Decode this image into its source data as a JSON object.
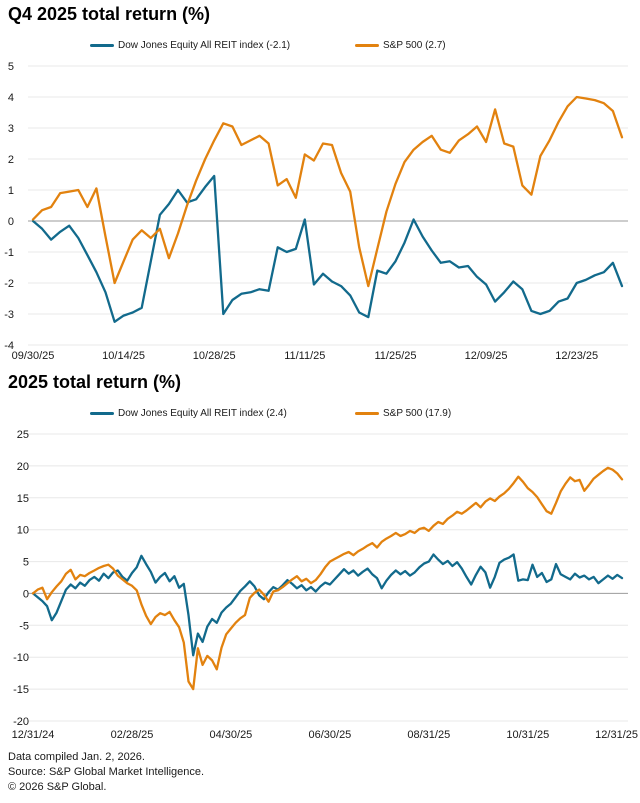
{
  "footer": {
    "line1": "Data compiled Jan. 2, 2026.",
    "line2": "Source: S&P Global Market Intelligence.",
    "line3": "© 2026 S&P Global."
  },
  "colors": {
    "reit": "#126a8c",
    "sp500": "#e2820f",
    "grid": "#e8e8e8",
    "zero_line": "#9b9b9b",
    "text": "#1a1a1a"
  },
  "chart_data": [
    {
      "type": "line",
      "title": "Q4 2025 total return (%)",
      "xlabel": "",
      "ylabel": "",
      "ylim": [
        -4,
        5
      ],
      "ytick_step": 1,
      "grid": true,
      "legend_position": "top",
      "x_tick_labels": [
        "09/30/25",
        "10/14/25",
        "10/28/25",
        "11/11/25",
        "11/25/25",
        "12/09/25",
        "12/23/25"
      ],
      "x_tick_indices": [
        0,
        10,
        20,
        30,
        40,
        50,
        60
      ],
      "series": [
        {
          "key": "reit",
          "name": "Dow Jones Equity All REIT index (-2.1)",
          "color": "#126a8c",
          "final_value": -2.1,
          "values": [
            0.0,
            -0.25,
            -0.6,
            -0.35,
            -0.15,
            -0.55,
            -1.1,
            -1.65,
            -2.3,
            -3.25,
            -3.05,
            -2.95,
            -2.8,
            -1.3,
            0.2,
            0.55,
            1.0,
            0.6,
            0.7,
            1.1,
            1.45,
            -3.0,
            -2.55,
            -2.35,
            -2.3,
            -2.2,
            -2.25,
            -0.85,
            -1.0,
            -0.9,
            0.05,
            -2.05,
            -1.7,
            -1.95,
            -2.1,
            -2.4,
            -2.95,
            -3.1,
            -1.6,
            -1.7,
            -1.3,
            -0.7,
            0.05,
            -0.5,
            -0.95,
            -1.35,
            -1.3,
            -1.5,
            -1.45,
            -1.8,
            -2.05,
            -2.6,
            -2.3,
            -1.95,
            -2.2,
            -2.9,
            -3.0,
            -2.9,
            -2.6,
            -2.5,
            -2.0,
            -1.9,
            -1.75,
            -1.65,
            -1.35,
            -2.1
          ]
        },
        {
          "key": "sp500",
          "name": "S&P 500 (2.7)",
          "color": "#e2820f",
          "final_value": 2.7,
          "values": [
            0.05,
            0.35,
            0.45,
            0.9,
            0.95,
            1.0,
            0.45,
            1.05,
            -0.5,
            -2.0,
            -1.3,
            -0.6,
            -0.3,
            -0.55,
            -0.25,
            -1.2,
            -0.4,
            0.5,
            1.3,
            2.0,
            2.6,
            3.15,
            3.05,
            2.45,
            2.6,
            2.75,
            2.5,
            1.15,
            1.35,
            0.75,
            2.15,
            1.95,
            2.5,
            2.45,
            1.55,
            0.95,
            -0.85,
            -2.1,
            -0.9,
            0.3,
            1.2,
            1.9,
            2.3,
            2.55,
            2.75,
            2.3,
            2.2,
            2.6,
            2.8,
            3.05,
            2.55,
            3.6,
            2.5,
            2.4,
            1.15,
            0.85,
            2.1,
            2.6,
            3.2,
            3.7,
            4.0,
            3.95,
            3.9,
            3.8,
            3.55,
            2.7
          ]
        }
      ]
    },
    {
      "type": "line",
      "title": "2025 total return (%)",
      "xlabel": "",
      "ylabel": "",
      "ylim": [
        -20,
        25
      ],
      "ytick_step": 5,
      "grid": true,
      "legend_position": "top",
      "x_tick_labels": [
        "12/31/24",
        "02/28/25",
        "04/30/25",
        "06/30/25",
        "08/31/25",
        "10/31/25",
        "12/31/25"
      ],
      "x_tick_indices": [
        0,
        21,
        42,
        63,
        84,
        105,
        125
      ],
      "series": [
        {
          "key": "reit",
          "name": "Dow Jones Equity All REIT index (2.4)",
          "color": "#126a8c",
          "final_value": 2.4,
          "values": [
            0,
            -0.6,
            -1.2,
            -2.0,
            -4.2,
            -3.0,
            -1.2,
            0.6,
            1.4,
            0.8,
            1.7,
            1.2,
            2.1,
            2.6,
            2.0,
            3.1,
            2.4,
            3.3,
            3.6,
            2.6,
            2.0,
            3.2,
            4.1,
            5.9,
            4.6,
            3.4,
            1.7,
            2.6,
            3.2,
            1.9,
            2.7,
            0.9,
            1.5,
            -3.4,
            -9.7,
            -6.3,
            -7.6,
            -5.2,
            -4.0,
            -4.6,
            -3.0,
            -2.2,
            -1.6,
            -0.6,
            0.4,
            1.1,
            1.9,
            1.1,
            -0.3,
            -0.9,
            0.2,
            1.0,
            0.6,
            1.3,
            2.1,
            1.5,
            0.8,
            1.3,
            0.5,
            1.0,
            0.3,
            1.1,
            1.7,
            1.4,
            2.2,
            3.0,
            3.8,
            3.1,
            3.6,
            2.8,
            3.4,
            3.9,
            3.0,
            2.4,
            0.8,
            2.0,
            2.9,
            3.6,
            3.0,
            3.5,
            2.8,
            3.3,
            4.1,
            4.7,
            5.0,
            6.1,
            5.3,
            4.6,
            5.1,
            4.3,
            4.9,
            3.9,
            2.6,
            1.4,
            2.9,
            4.2,
            3.3,
            0.9,
            2.6,
            4.8,
            5.3,
            5.6,
            6.1,
            2.0,
            2.2,
            2.1,
            4.5,
            2.6,
            3.2,
            1.8,
            2.2,
            4.6,
            3.0,
            2.6,
            2.2,
            3.1,
            2.5,
            2.8,
            2.2,
            2.6,
            1.6,
            2.2,
            2.8,
            2.3,
            2.9,
            2.4
          ]
        },
        {
          "key": "sp500",
          "name": "S&P 500 (17.9)",
          "color": "#e2820f",
          "final_value": 17.9,
          "values": [
            0,
            0.6,
            0.9,
            -0.9,
            0.2,
            1.1,
            1.9,
            3.1,
            3.7,
            2.2,
            2.9,
            2.7,
            3.2,
            3.6,
            4.0,
            4.3,
            4.5,
            3.9,
            2.8,
            2.2,
            1.6,
            1.2,
            0.5,
            -1.7,
            -3.5,
            -4.8,
            -3.7,
            -3.1,
            -3.4,
            -2.9,
            -4.2,
            -5.3,
            -7.7,
            -13.8,
            -15.0,
            -8.6,
            -11.2,
            -9.8,
            -10.5,
            -11.9,
            -8.5,
            -6.4,
            -5.5,
            -4.6,
            -3.9,
            -3.4,
            -0.7,
            0.1,
            0.6,
            -0.2,
            -1.3,
            0.3,
            0.5,
            1.0,
            1.6,
            2.2,
            2.7,
            1.9,
            2.3,
            1.6,
            2.1,
            3.0,
            4.1,
            5.0,
            5.4,
            5.8,
            6.2,
            6.5,
            6.0,
            6.6,
            7.0,
            7.5,
            7.9,
            7.2,
            8.1,
            8.6,
            9.0,
            9.5,
            9.0,
            9.3,
            9.8,
            9.5,
            10.1,
            10.3,
            9.8,
            10.6,
            11.2,
            10.9,
            11.7,
            12.2,
            12.8,
            12.5,
            13.0,
            13.6,
            14.2,
            13.5,
            14.4,
            14.9,
            14.5,
            15.2,
            15.7,
            16.4,
            17.3,
            18.3,
            17.5,
            16.5,
            15.9,
            15.1,
            14.0,
            12.9,
            12.5,
            14.2,
            16.0,
            17.2,
            18.2,
            17.6,
            17.8,
            16.1,
            17.0,
            18.0,
            18.6,
            19.2,
            19.7,
            19.4,
            18.8,
            17.9
          ]
        }
      ]
    }
  ]
}
